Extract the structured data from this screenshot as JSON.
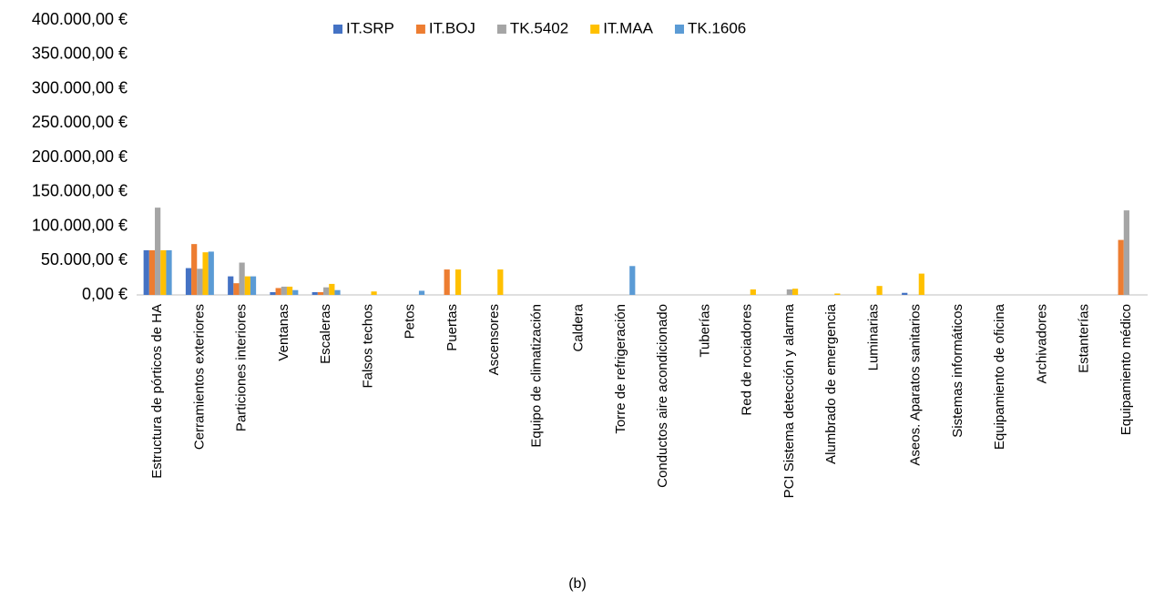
{
  "chart_data": {
    "type": "bar",
    "caption": "(b)",
    "categories": [
      "Estructura de pórticos de HA",
      "Cerramientos exteriores",
      "Particiones interiores",
      "Ventanas",
      "Escaleras",
      "Falsos techos",
      "Petos",
      "Puertas",
      "Ascensores",
      "Equipo de climatización",
      "Caldera",
      "Torre de refrigeración",
      "Conductos aire acondicionado",
      "Tuberías",
      "Red de rociadores",
      "PCI Sistema detección y alarma",
      "Alumbrado de emergencia",
      "Luminarias",
      "Aseos. Aparatos sanitarios",
      "Sistemas informáticos",
      "Equipamiento de oficina",
      "Archivadores",
      "Estanterías",
      "Equipamiento médico"
    ],
    "series": [
      {
        "name": "IT.SRP",
        "color": "#4472c4",
        "values": [
          65000,
          39000,
          27000,
          4000,
          4000,
          0,
          0,
          0,
          0,
          0,
          0,
          0,
          0,
          0,
          0,
          0,
          0,
          0,
          3000,
          0,
          0,
          0,
          0,
          0
        ]
      },
      {
        "name": "IT.BOJ",
        "color": "#ed7d31",
        "values": [
          65000,
          74000,
          17000,
          10000,
          4000,
          0,
          0,
          37000,
          0,
          0,
          0,
          0,
          0,
          0,
          0,
          0,
          0,
          0,
          0,
          0,
          0,
          0,
          0,
          80000
        ]
      },
      {
        "name": "TK.5402",
        "color": "#a5a5a5",
        "values": [
          127000,
          38000,
          47000,
          12000,
          11000,
          0,
          0,
          0,
          0,
          0,
          0,
          0,
          0,
          0,
          0,
          8000,
          0,
          0,
          0,
          0,
          0,
          0,
          0,
          123000
        ]
      },
      {
        "name": "IT.MAA",
        "color": "#ffc000",
        "values": [
          65000,
          62000,
          27000,
          12000,
          16000,
          5000,
          0,
          37000,
          37000,
          0,
          0,
          0,
          0,
          0,
          8000,
          9000,
          2000,
          13000,
          31000,
          0,
          0,
          0,
          0,
          0
        ]
      },
      {
        "name": "TK.1606",
        "color": "#5b9bd5",
        "values": [
          65000,
          63000,
          27000,
          7000,
          7000,
          0,
          6000,
          0,
          0,
          0,
          0,
          42000,
          0,
          0,
          0,
          0,
          0,
          0,
          0,
          0,
          0,
          0,
          0,
          0
        ]
      }
    ],
    "ylim": [
      0,
      400000
    ],
    "yticks": [
      {
        "value": 0,
        "label": "0,00 €"
      },
      {
        "value": 50000,
        "label": "50.000,00 €"
      },
      {
        "value": 100000,
        "label": "100.000,00 €"
      },
      {
        "value": 150000,
        "label": "150.000,00 €"
      },
      {
        "value": 200000,
        "label": "200.000,00 €"
      },
      {
        "value": 250000,
        "label": "250.000,00 €"
      },
      {
        "value": 300000,
        "label": "300.000,00 €"
      },
      {
        "value": 350000,
        "label": "350.000,00 €"
      },
      {
        "value": 400000,
        "label": "400.000,00 €"
      }
    ],
    "legend": "top",
    "grid": false
  }
}
